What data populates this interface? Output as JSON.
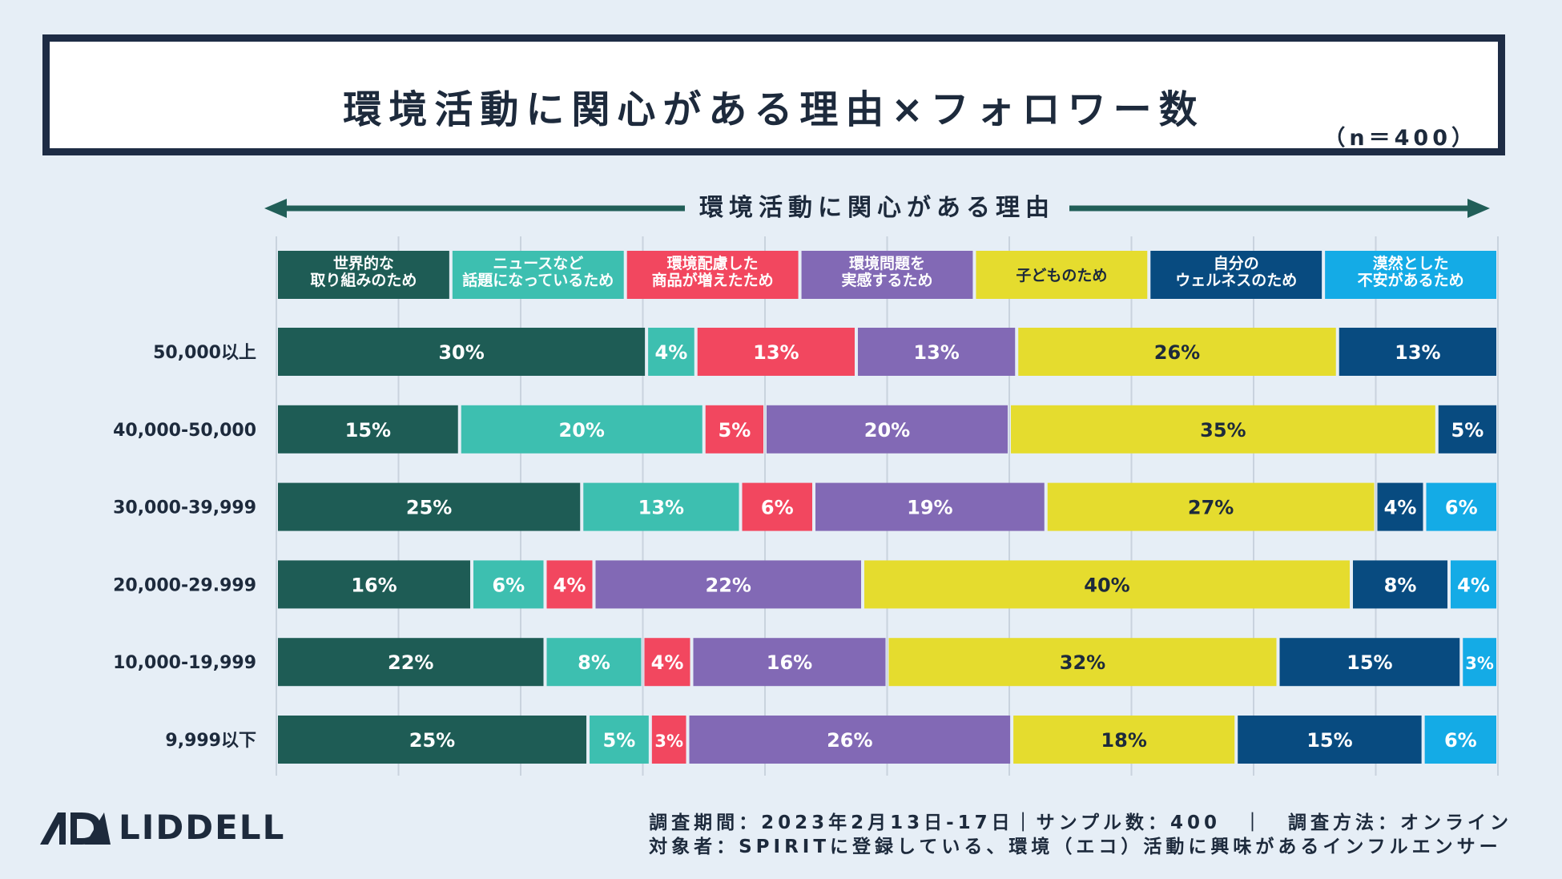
{
  "title": "環境活動に関心がある理由×フォロワー数",
  "sample_note": "（n＝400）",
  "axis_caption": "環境活動に関心がある理由",
  "footer": {
    "logo_text": "LIDDELL",
    "line1": "調査期間：2023年2月13日-17日｜サンプル数：400　｜　調査方法：オンライン",
    "line2": "対象者：SPIRITに登録している、環境（エコ）活動に興味があるインフルエンサー"
  },
  "chart_data": {
    "type": "bar",
    "orientation": "horizontal",
    "stacked": "percent",
    "grid": true,
    "legend_position": "top",
    "categories": [
      "50,000以上",
      "40,000-50,000",
      "30,000-39,999",
      "20,000-29.999",
      "10,000-19,999",
      "9,999以下"
    ],
    "series": [
      {
        "name": "世界的な\n取り組みのため",
        "color": "#1e5c55",
        "values": [
          30,
          15,
          25,
          16,
          22,
          25
        ]
      },
      {
        "name": "ニュースなど\n話題になっているため",
        "color": "#3dbfb0",
        "values": [
          4,
          20,
          13,
          6,
          8,
          5
        ]
      },
      {
        "name": "環境配慮した\n商品が増えたため",
        "color": "#f2475f",
        "values": [
          13,
          5,
          6,
          4,
          4,
          3
        ]
      },
      {
        "name": "環境問題を\n実感するため",
        "color": "#8269b5",
        "values": [
          13,
          20,
          19,
          22,
          16,
          26
        ]
      },
      {
        "name": "子どものため",
        "color": "#e5dc2e",
        "values": [
          26,
          35,
          27,
          40,
          32,
          18
        ]
      },
      {
        "name": "自分の\nウェルネスのため",
        "color": "#084b80",
        "values": [
          13,
          5,
          4,
          8,
          15,
          15
        ]
      },
      {
        "name": "漠然とした\n不安があるため",
        "color": "#14abe6",
        "values": [
          0,
          0,
          6,
          4,
          3,
          6
        ]
      }
    ],
    "value_labels": [
      [
        "30%",
        "4%",
        "13%",
        "13%",
        "26%",
        "13%",
        ""
      ],
      [
        "15%",
        "20%",
        "5%",
        "20%",
        "35%",
        "5%",
        ""
      ],
      [
        "25%",
        "13%",
        "6%",
        "19%",
        "27%",
        "4%",
        "6%"
      ],
      [
        "16%",
        "6%",
        "4%",
        "22%",
        "40%",
        "8%",
        "4%"
      ],
      [
        "22%",
        "8%",
        "4%",
        "16%",
        "32%",
        "15%",
        "3%"
      ],
      [
        "25%",
        "5%",
        "3%",
        "26%",
        "18%",
        "15%",
        "6%"
      ]
    ]
  }
}
